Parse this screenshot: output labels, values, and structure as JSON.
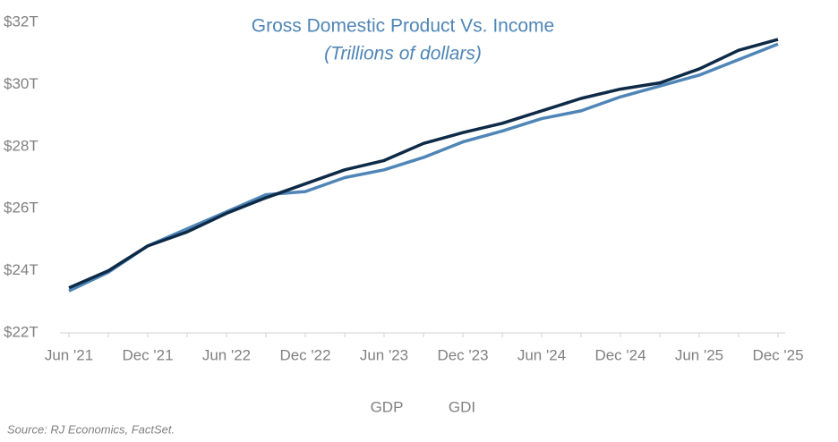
{
  "chart_data": {
    "type": "line",
    "title": "Gross Domestic Product Vs. Income",
    "subtitle": "(Trillions of dollars)",
    "source": "Source: RJ Economics, FactSet.",
    "categories": [
      "Jun '21",
      null,
      "Dec '21",
      null,
      "Jun '22",
      null,
      "Dec '22",
      null,
      "Jun '23",
      null,
      "Dec '23",
      null,
      "Jun '24",
      null,
      "Dec '24",
      null,
      "Jun '25",
      null,
      "Dec '25"
    ],
    "series": [
      {
        "name": "GDP",
        "color": "#0d2a47",
        "values": [
          23.45,
          24.0,
          24.8,
          25.25,
          25.85,
          26.35,
          26.8,
          27.25,
          27.55,
          28.1,
          28.45,
          28.75,
          29.15,
          29.55,
          29.85,
          30.05,
          30.5,
          31.1,
          31.45
        ]
      },
      {
        "name": "GDI",
        "color": "#4f86b7",
        "values": [
          23.35,
          23.95,
          24.8,
          25.35,
          25.9,
          26.45,
          26.55,
          27.0,
          27.25,
          27.65,
          28.15,
          28.5,
          28.9,
          29.15,
          29.6,
          29.95,
          30.3,
          30.8,
          31.3
        ]
      }
    ],
    "ylim": [
      22,
      32
    ],
    "yticks": [
      {
        "value": 22,
        "label": "$22T"
      },
      {
        "value": 24,
        "label": "$24T"
      },
      {
        "value": 26,
        "label": "$26T"
      },
      {
        "value": 28,
        "label": "$28T"
      },
      {
        "value": 30,
        "label": "$30T"
      },
      {
        "value": 32,
        "label": "$32T"
      }
    ],
    "grid": false
  }
}
